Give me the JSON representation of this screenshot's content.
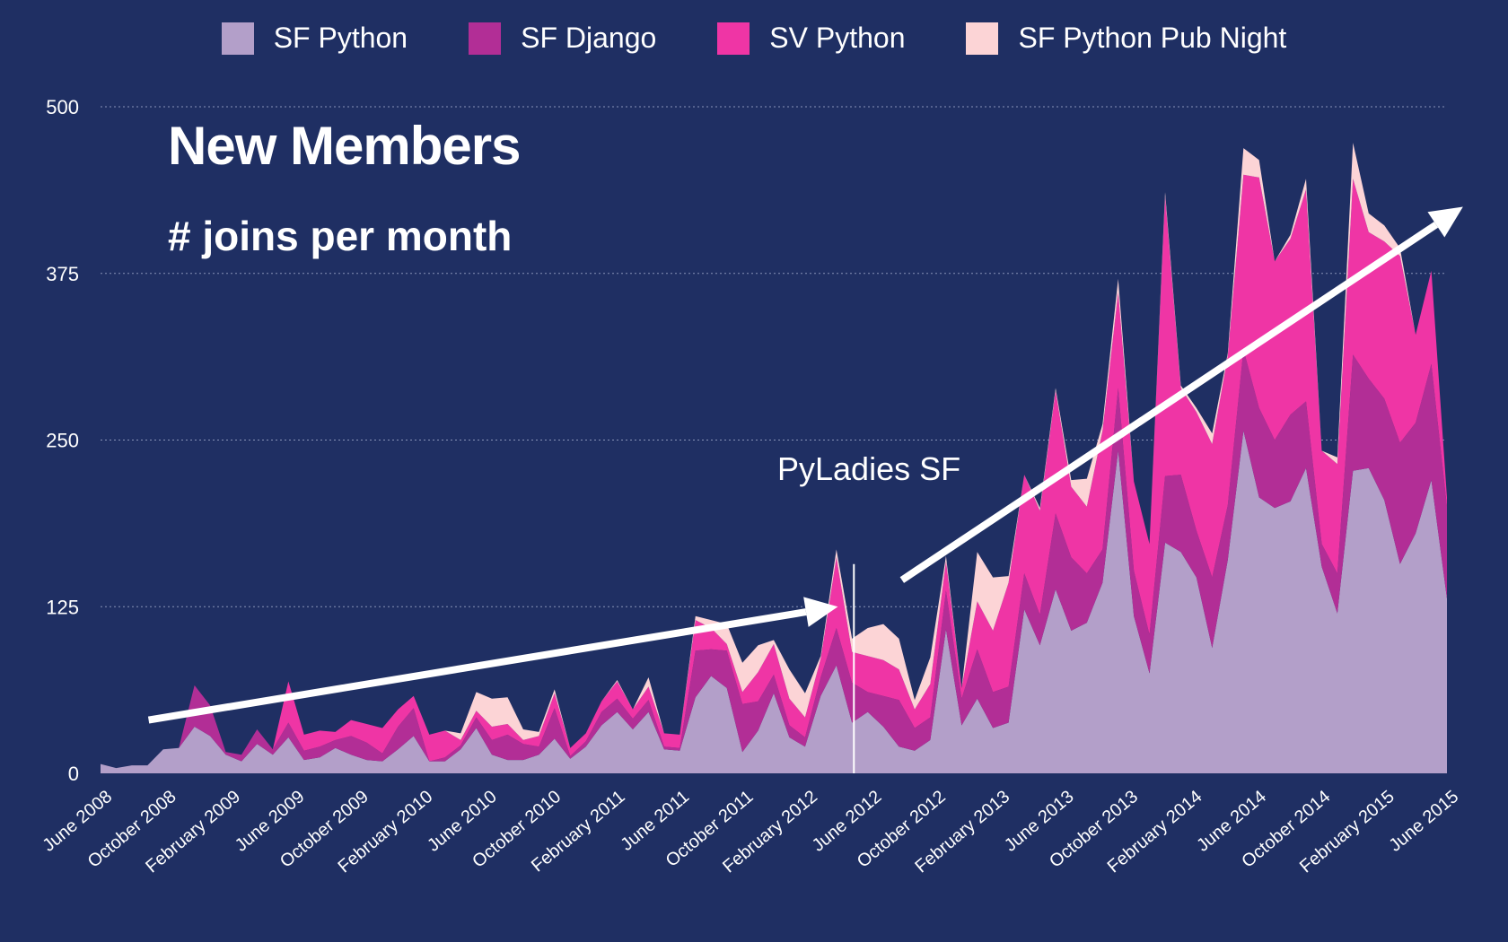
{
  "colors": {
    "background": "#1f2f63",
    "sf_python": "#b39fc9",
    "sf_django": "#b22e96",
    "sv_python": "#ef35a5",
    "sf_pub_night": "#fcd4d6"
  },
  "chart_data": {
    "type": "area",
    "stacked": true,
    "title": "New Members",
    "subtitle": "# joins per month",
    "ylim": [
      0,
      500
    ],
    "yticks": [
      0,
      125,
      250,
      375,
      500
    ],
    "grid": true,
    "legend_position": "top",
    "x_tick_labels": [
      "June 2008",
      "October 2008",
      "February 2009",
      "June 2009",
      "October 2009",
      "February 2010",
      "June 2010",
      "October 2010",
      "February 2011",
      "June 2011",
      "October 2011",
      "February 2012",
      "June 2012",
      "October 2012",
      "February 2013",
      "June 2013",
      "October 2013",
      "February 2014",
      "June 2014",
      "October 2014",
      "February 2015",
      "June 2015"
    ],
    "x_start": "June 2008",
    "x_end": "June 2015",
    "series": [
      {
        "name": "SF Python",
        "color": "#b39fc9",
        "values": [
          7,
          4,
          6,
          6,
          18,
          19,
          35,
          28,
          14,
          9,
          22,
          14,
          27,
          10,
          12,
          19,
          14,
          10,
          9,
          18,
          28,
          9,
          9,
          18,
          34,
          14,
          10,
          10,
          14,
          26,
          11,
          20,
          36,
          46,
          33,
          46,
          18,
          17,
          57,
          73,
          64,
          16,
          32,
          60,
          27,
          20,
          58,
          81,
          38,
          46,
          35,
          20,
          17,
          25,
          108,
          36,
          56,
          34,
          38,
          123,
          96,
          138,
          107,
          113,
          143,
          242,
          118,
          75,
          173,
          166,
          147,
          94,
          160,
          257,
          207,
          199,
          204,
          229,
          155,
          120,
          227,
          229,
          205,
          157,
          180,
          220,
          131
        ]
      },
      {
        "name": "SF Django",
        "color": "#b22e96",
        "values": [
          0,
          0,
          0,
          0,
          0,
          0,
          31,
          23,
          2,
          5,
          11,
          4,
          11,
          7,
          8,
          6,
          14,
          13,
          6,
          17,
          21,
          0,
          3,
          3,
          8,
          11,
          19,
          12,
          6,
          23,
          2,
          4,
          10,
          10,
          8,
          9,
          2,
          2,
          35,
          20,
          28,
          36,
          22,
          14,
          9,
          7,
          14,
          28,
          30,
          15,
          23,
          35,
          17,
          17,
          29,
          20,
          37,
          27,
          27,
          27,
          23,
          57,
          55,
          37,
          25,
          47,
          34,
          29,
          50,
          58,
          35,
          53,
          41,
          61,
          67,
          51,
          65,
          50,
          17,
          30,
          87,
          67,
          76,
          91,
          83,
          87,
          69
        ]
      },
      {
        "name": "SV Python",
        "color": "#ef35a5",
        "values": [
          0,
          0,
          0,
          0,
          0,
          0,
          0,
          0,
          0,
          0,
          0,
          0,
          31,
          12,
          12,
          6,
          12,
          14,
          19,
          13,
          9,
          20,
          20,
          4,
          5,
          10,
          8,
          3,
          8,
          11,
          6,
          6,
          8,
          13,
          7,
          10,
          10,
          10,
          23,
          16,
          5,
          9,
          22,
          23,
          20,
          15,
          14,
          53,
          23,
          27,
          27,
          23,
          14,
          25,
          22,
          8,
          36,
          46,
          78,
          74,
          78,
          92,
          53,
          50,
          89,
          72,
          67,
          68,
          210,
          65,
          89,
          100,
          112,
          131,
          173,
          134,
          132,
          159,
          70,
          82,
          132,
          110,
          118,
          140,
          66,
          70,
          7
        ]
      },
      {
        "name": "SF Python Pub Night",
        "color": "#fcd4d6",
        "values": [
          0,
          0,
          0,
          0,
          0,
          0,
          0,
          0,
          0,
          0,
          0,
          0,
          0,
          0,
          0,
          0,
          0,
          0,
          0,
          0,
          0,
          0,
          0,
          5,
          14,
          21,
          20,
          8,
          3,
          3,
          0,
          0,
          0,
          1,
          0,
          7,
          0,
          0,
          3,
          6,
          15,
          22,
          20,
          3,
          22,
          18,
          2,
          6,
          10,
          21,
          27,
          23,
          7,
          20,
          4,
          0,
          37,
          40,
          5,
          0,
          2,
          2,
          5,
          21,
          5,
          10,
          0,
          0,
          3,
          2,
          3,
          8,
          2,
          20,
          13,
          0,
          3,
          8,
          0,
          5,
          27,
          14,
          12,
          6,
          0,
          0,
          0
        ]
      }
    ],
    "annotations": [
      {
        "text": "PyLadies SF",
        "x": "May 2012",
        "type": "vline"
      },
      {
        "type": "arrow",
        "from": [
          "September 2008",
          40
        ],
        "to": [
          "April 2012",
          125
        ]
      },
      {
        "type": "arrow",
        "from": [
          "August 2012",
          145
        ],
        "to": [
          "July 2015",
          425
        ]
      }
    ]
  }
}
